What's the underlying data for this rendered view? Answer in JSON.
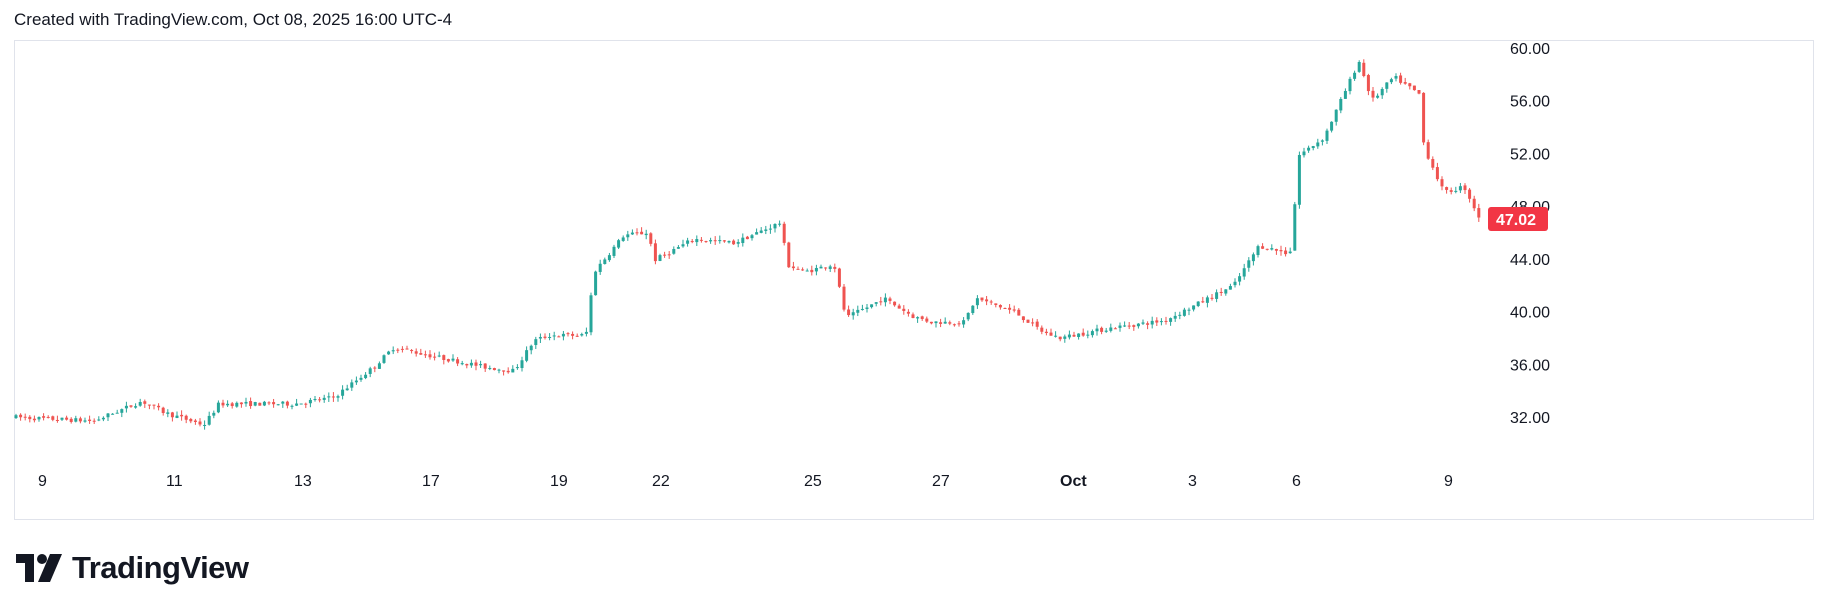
{
  "header": {
    "text": "Created with TradingView.com, Oct 08, 2025 16:00 UTC-4"
  },
  "brand": {
    "text": "TradingView",
    "logo_icon": "tradingview-logo-icon"
  },
  "colors": {
    "up": "#26a69a",
    "down": "#ef5350",
    "text": "#131722",
    "frame": "#e0e3eb",
    "tag": "#f23645"
  },
  "chart_data": {
    "type": "candlestick",
    "title": "",
    "xlabel": "",
    "ylabel": "",
    "ylim": [
      29.5,
      60.6
    ],
    "y_ticks": [
      "60.00",
      "56.00",
      "52.00",
      "48.00",
      "44.00",
      "40.00",
      "36.00",
      "32.00"
    ],
    "x_ticks": [
      {
        "label": "9",
        "bold": false
      },
      {
        "label": "11",
        "bold": false
      },
      {
        "label": "13",
        "bold": false
      },
      {
        "label": "17",
        "bold": false
      },
      {
        "label": "19",
        "bold": false
      },
      {
        "label": "22",
        "bold": false
      },
      {
        "label": "25",
        "bold": false
      },
      {
        "label": "27",
        "bold": false
      },
      {
        "label": "Oct",
        "bold": true
      },
      {
        "label": "3",
        "bold": false
      },
      {
        "label": "6",
        "bold": false
      },
      {
        "label": "9",
        "bold": false
      }
    ],
    "last_price": "47.02",
    "grid": false,
    "legend": "none",
    "anchors": [
      {
        "label": "9",
        "close": 31.9
      },
      {
        "label": "11",
        "close": 32.3
      },
      {
        "label": "13",
        "close": 33.0
      },
      {
        "label": "17",
        "close": 36.8
      },
      {
        "label": "19",
        "close": 38.2
      },
      {
        "label": "22",
        "close": 43.8
      },
      {
        "label": "25",
        "close": 43.0
      },
      {
        "label": "27",
        "close": 39.2
      },
      {
        "label": "Oct",
        "close": 38.0
      },
      {
        "label": "3",
        "close": 40.2
      },
      {
        "label": "6",
        "close": 45.0
      },
      {
        "label": "9",
        "close": 47.02
      }
    ]
  }
}
